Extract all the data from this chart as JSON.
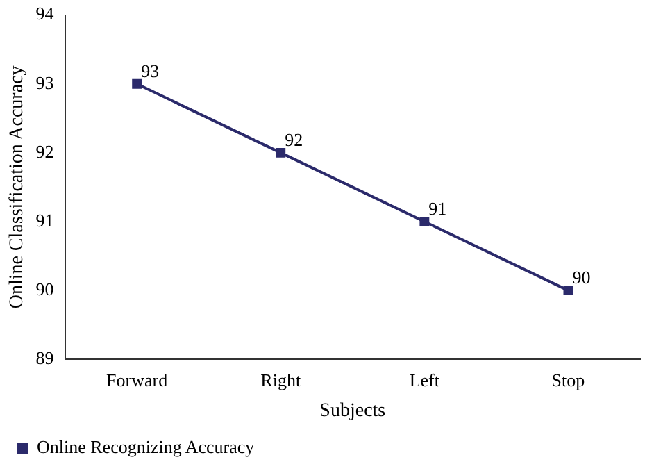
{
  "chart_data": {
    "type": "line",
    "xlabel": "Subjects",
    "ylabel": "Online Classification Accuracy",
    "categories": [
      "Forward",
      "Right",
      "Left",
      "Stop"
    ],
    "series": [
      {
        "name": "Online Recognizing Accuracy",
        "color": "#2b2a6b",
        "values": [
          93,
          92,
          91,
          90
        ]
      }
    ],
    "ylim": [
      89,
      94
    ],
    "yticks": [
      89,
      90,
      91,
      92,
      93,
      94
    ],
    "grid": false,
    "legend": "bottom left",
    "marker": "square",
    "line_style": "solid",
    "data_labels": true
  }
}
